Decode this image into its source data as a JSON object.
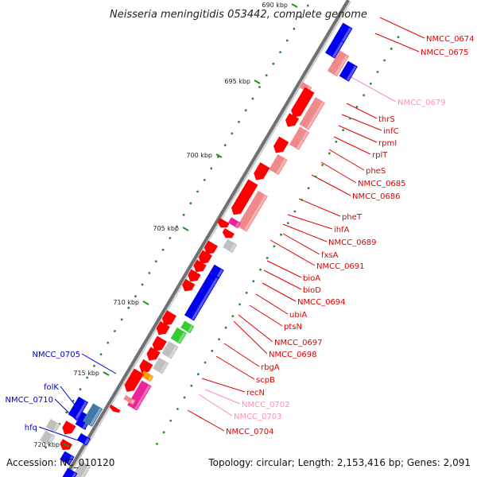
{
  "title": "Neisseria meningitidis 053442, complete genome",
  "footer": {
    "accession": "Accession: NC_010120",
    "summary": "Topology: circular; Length: 2,153,416 bp; Genes: 2,091"
  },
  "colors": {
    "label_red": "#e00000",
    "label_pink": "#ff8fb0",
    "label_blue": "#0000cc",
    "gene_red": "#ff0000",
    "gene_pink": "#f08a8a",
    "gene_blue": "#0000ee",
    "gene_grey": "#c0c0c0",
    "gene_green": "#33cc33",
    "gene_orange": "#ff9900",
    "gene_magenta": "#ee2299",
    "gene_steel": "#4477aa",
    "tick_green": "#2a8a2a"
  },
  "kbp_ticks": [
    "690 kbp",
    "695 kbp",
    "700 kbp",
    "705 kbp",
    "710 kbp",
    "715 kbp",
    "720 kbp"
  ],
  "gene_labels": [
    {
      "name": "NMCC_0674",
      "color": "red"
    },
    {
      "name": "NMCC_0675",
      "color": "red"
    },
    {
      "name": "NMCC_0679",
      "color": "pink"
    },
    {
      "name": "thrS",
      "color": "red"
    },
    {
      "name": "infC",
      "color": "red"
    },
    {
      "name": "rpmI",
      "color": "red"
    },
    {
      "name": "rplT",
      "color": "red"
    },
    {
      "name": "pheS",
      "color": "red"
    },
    {
      "name": "NMCC_0685",
      "color": "red"
    },
    {
      "name": "NMCC_0686",
      "color": "red"
    },
    {
      "name": "pheT",
      "color": "red"
    },
    {
      "name": "ihfA",
      "color": "red"
    },
    {
      "name": "NMCC_0689",
      "color": "red"
    },
    {
      "name": "fxsA",
      "color": "red"
    },
    {
      "name": "NMCC_0691",
      "color": "red"
    },
    {
      "name": "bioA",
      "color": "red"
    },
    {
      "name": "bioD",
      "color": "red"
    },
    {
      "name": "NMCC_0694",
      "color": "red"
    },
    {
      "name": "ubiA",
      "color": "red"
    },
    {
      "name": "ptsN",
      "color": "red"
    },
    {
      "name": "NMCC_0697",
      "color": "red"
    },
    {
      "name": "NMCC_0698",
      "color": "red"
    },
    {
      "name": "rbgA",
      "color": "red"
    },
    {
      "name": "scpB",
      "color": "red"
    },
    {
      "name": "recN",
      "color": "red"
    },
    {
      "name": "NMCC_0702",
      "color": "pink"
    },
    {
      "name": "NMCC_0703",
      "color": "pink"
    },
    {
      "name": "NMCC_0704",
      "color": "red"
    },
    {
      "name": "NMCC_0705",
      "color": "blue"
    },
    {
      "name": "folK",
      "color": "blue"
    },
    {
      "name": "NMCC_0710",
      "color": "blue"
    },
    {
      "name": "hfq",
      "color": "blue"
    }
  ]
}
